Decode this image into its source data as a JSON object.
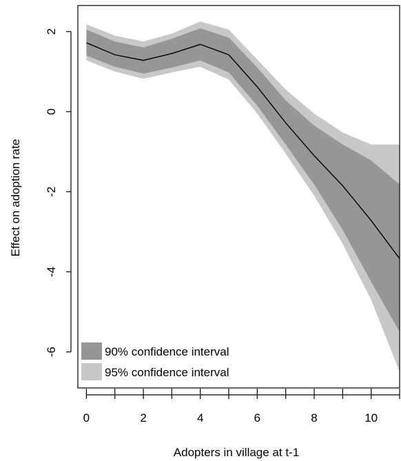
{
  "chart_data": {
    "type": "area",
    "title": "",
    "xlabel": "Adopters in village at t-1",
    "ylabel": "Effect on adoption rate",
    "xlim": [
      -0.3,
      11
    ],
    "ylim": [
      -6.9,
      2.65
    ],
    "x_ticks": [
      0,
      1,
      2,
      3,
      4,
      5,
      6,
      7,
      8,
      9,
      10,
      11
    ],
    "x_tick_labels": [
      "0",
      "",
      "2",
      "",
      "4",
      "",
      "6",
      "",
      "8",
      "",
      "10",
      ""
    ],
    "y_ticks": [
      2,
      0,
      -2,
      -4,
      -6
    ],
    "y_tick_labels": [
      "2",
      "0",
      "-2",
      "-4",
      "-6"
    ],
    "grid": false,
    "legend_position": "bottom-left",
    "x": [
      0,
      1,
      2,
      3,
      4,
      5,
      6,
      7,
      8,
      9,
      10,
      11
    ],
    "series": [
      {
        "name": "",
        "role": "estimate",
        "values": [
          1.72,
          1.42,
          1.28,
          1.45,
          1.68,
          1.42,
          0.62,
          -0.28,
          -1.1,
          -1.85,
          -2.72,
          -3.67
        ]
      }
    ],
    "bands": [
      {
        "name": "95% confidence interval",
        "color": "#c8c8c8",
        "lower": [
          1.28,
          1.0,
          0.82,
          0.98,
          1.12,
          0.8,
          -0.05,
          -1.05,
          -2.1,
          -3.3,
          -4.7,
          -6.5
        ],
        "upper": [
          2.18,
          1.9,
          1.75,
          1.95,
          2.25,
          2.05,
          1.3,
          0.55,
          -0.05,
          -0.52,
          -0.82,
          -0.82
        ]
      },
      {
        "name": "90% confidence interval",
        "color": "#969696",
        "lower": [
          1.4,
          1.12,
          0.95,
          1.1,
          1.28,
          0.98,
          0.15,
          -0.82,
          -1.82,
          -2.95,
          -4.25,
          -5.5
        ],
        "upper": [
          2.05,
          1.75,
          1.6,
          1.82,
          2.08,
          1.85,
          1.1,
          0.28,
          -0.35,
          -0.82,
          -1.22,
          -1.82
        ]
      }
    ],
    "colors": {
      "line": "#000000",
      "axis": "#000000",
      "background": "#ffffff"
    }
  }
}
